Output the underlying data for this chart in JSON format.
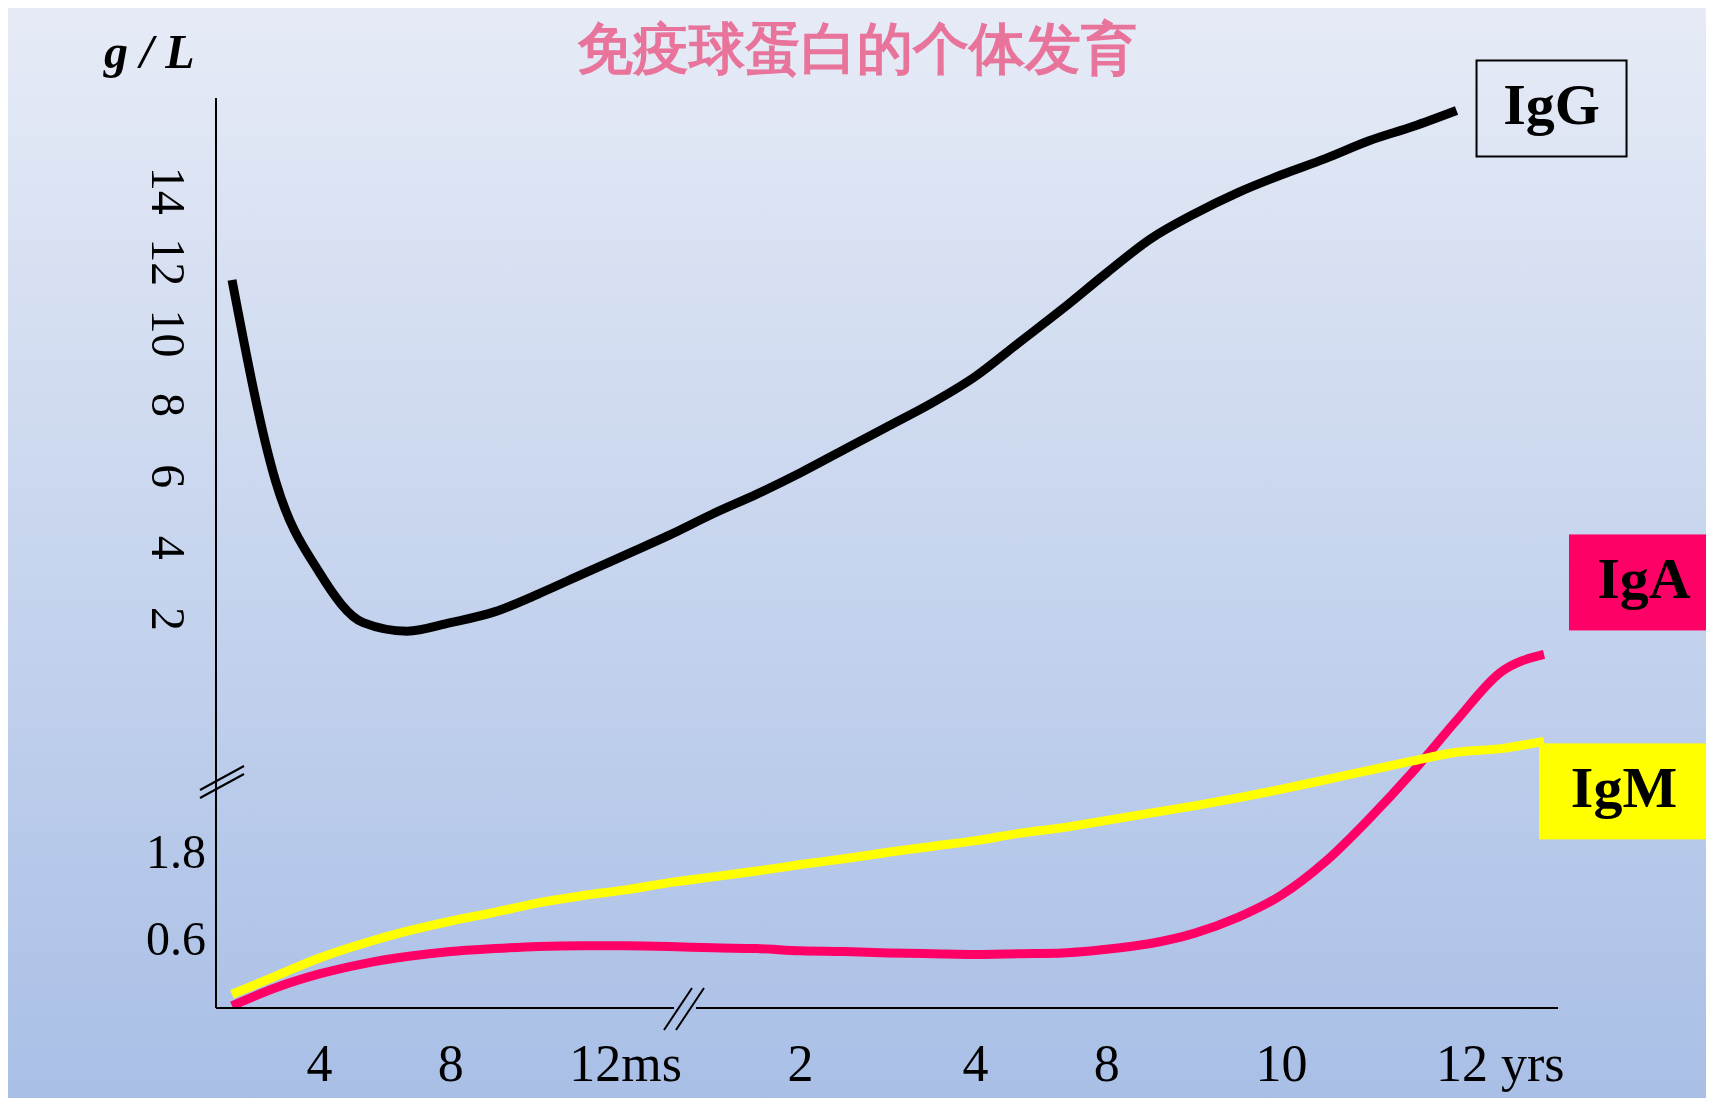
{
  "chart_data": {
    "type": "line",
    "title": "免疫球蛋白的个体发育",
    "ylabel": "g / L",
    "categories": [
      null,
      null,
      "4",
      null,
      null,
      "8",
      null,
      null,
      null,
      "12ms",
      null,
      null,
      null,
      "2",
      null,
      null,
      null,
      "4",
      null,
      null,
      "8",
      null,
      null,
      null,
      "10",
      null,
      null,
      null,
      null,
      "12 yrs",
      null
    ],
    "ylim": [
      -8.9,
      16.6
    ],
    "yticks": [
      2,
      4,
      6,
      8,
      10,
      12,
      14
    ],
    "y2lim": [
      -0.36,
      12.2
    ],
    "y2ticks": [
      0.6,
      1.8
    ],
    "series": [
      {
        "name": "IgG",
        "color": "#000000",
        "values": [
          11.5,
          5.85,
          3.3,
          1.9,
          1.66,
          1.9,
          2.2,
          2.7,
          3.25,
          3.8,
          4.35,
          4.95,
          5.5,
          6.1,
          6.75,
          7.4,
          8.05,
          8.8,
          9.75,
          10.7,
          11.7,
          12.65,
          13.35,
          13.95,
          14.45,
          14.9,
          15.4,
          15.8,
          16.25,
          null,
          null
        ]
      },
      {
        "name": "IgA",
        "color": "#ff0066",
        "axis": "y2",
        "values": [
          -0.33,
          -0.08,
          0.11,
          0.25,
          0.35,
          0.42,
          0.46,
          0.49,
          0.5,
          0.5,
          0.49,
          0.47,
          0.46,
          0.43,
          0.42,
          0.4,
          0.39,
          0.38,
          0.39,
          0.4,
          0.45,
          0.53,
          0.67,
          0.89,
          1.2,
          1.66,
          2.25,
          2.9,
          3.61,
          4.27,
          4.52
        ]
      },
      {
        "name": "IgM",
        "color": "#ffff00",
        "axis": "y2",
        "values": [
          -0.17,
          0.08,
          0.33,
          0.53,
          0.7,
          0.84,
          0.96,
          1.09,
          1.19,
          1.27,
          1.37,
          1.45,
          1.53,
          1.62,
          1.7,
          1.79,
          1.87,
          1.95,
          2.05,
          2.13,
          2.23,
          2.33,
          2.43,
          2.54,
          2.66,
          2.79,
          2.92,
          3.05,
          3.17,
          3.22,
          3.32
        ]
      }
    ],
    "grid": false,
    "legend": false,
    "marker": "none",
    "line_style": "solid"
  }
}
